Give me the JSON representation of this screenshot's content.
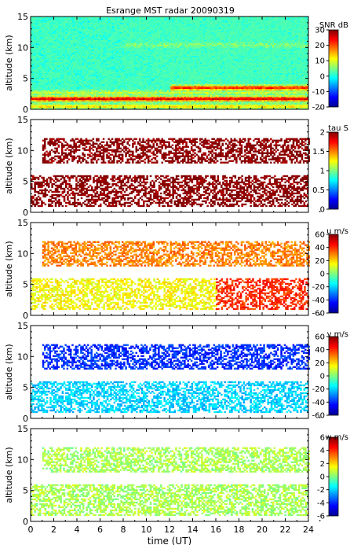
{
  "title": "Esrange MST radar 20090319",
  "chart_data": [
    {
      "type": "heatmap",
      "variable": "SNR",
      "ylabel": "altitude (km)",
      "xlabel": "",
      "xlim": [
        0,
        24
      ],
      "ylim": [
        0,
        15
      ],
      "yticks": [
        "0",
        "5",
        "10",
        "15"
      ],
      "colorbar": {
        "title": "SNR dB",
        "range": [
          -20,
          30
        ],
        "ticks": [
          "30",
          "20",
          "10",
          "0",
          "-10",
          "-20"
        ]
      },
      "layers": [
        {
          "alt_km": 1.8,
          "hour_range": [
            0,
            24
          ],
          "value_dB": 25
        },
        {
          "alt_km": 0.6,
          "hour_range": [
            0,
            24
          ],
          "value_dB": 12
        },
        {
          "alt_km": 2.8,
          "hour_range": [
            0,
            24
          ],
          "value_dB": 8
        },
        {
          "alt_km": 3.6,
          "hour_range": [
            12,
            24
          ],
          "value_dB": 22
        },
        {
          "alt_km": 10.5,
          "hour_range": [
            8,
            24
          ],
          "value_dB": 5
        }
      ],
      "background_dB": -3
    },
    {
      "type": "heatmap",
      "variable": "tau",
      "ylabel": "altitude (km)",
      "xlabel": "",
      "xlim": [
        0,
        24
      ],
      "ylim": [
        0,
        15
      ],
      "yticks": [
        "0",
        "5",
        "10",
        "15"
      ],
      "colorbar": {
        "title": "tau S",
        "range": [
          0,
          2
        ],
        "ticks": [
          "2",
          "1.5",
          "1",
          "0.5",
          "0"
        ]
      },
      "regions": [
        {
          "alt_km": [
            1,
            6
          ],
          "hour_range": [
            0,
            24
          ],
          "value_s": 2
        },
        {
          "alt_km": [
            8,
            12
          ],
          "hour_range": [
            1,
            24
          ],
          "value_s": 2
        }
      ]
    },
    {
      "type": "heatmap",
      "variable": "u",
      "ylabel": "altitude (km)",
      "xlabel": "",
      "xlim": [
        0,
        24
      ],
      "ylim": [
        0,
        15
      ],
      "yticks": [
        "0",
        "5",
        "10",
        "15"
      ],
      "colorbar": {
        "title": "u m/s",
        "range": [
          -60,
          60
        ],
        "ticks": [
          "60",
          "40",
          "20",
          "0",
          "-20",
          "-40",
          "-60"
        ]
      },
      "regions": [
        {
          "alt_km": [
            1,
            6
          ],
          "hour_range": [
            0,
            16
          ],
          "value_ms": 15
        },
        {
          "alt_km": [
            1,
            6
          ],
          "hour_range": [
            16,
            24
          ],
          "value_ms": 40
        },
        {
          "alt_km": [
            8,
            12
          ],
          "hour_range": [
            1,
            24
          ],
          "value_ms": 30
        }
      ]
    },
    {
      "type": "heatmap",
      "variable": "v",
      "ylabel": "altitude (km)",
      "xlabel": "",
      "xlim": [
        0,
        24
      ],
      "ylim": [
        0,
        15
      ],
      "yticks": [
        "0",
        "5",
        "10",
        "15"
      ],
      "colorbar": {
        "title": "v m/s",
        "range": [
          -60,
          60
        ],
        "ticks": [
          "60",
          "40",
          "20",
          "0",
          "-20",
          "-40",
          "-60"
        ]
      },
      "regions": [
        {
          "alt_km": [
            1,
            6
          ],
          "hour_range": [
            0,
            24
          ],
          "value_ms": -20
        },
        {
          "alt_km": [
            8,
            12
          ],
          "hour_range": [
            1,
            24
          ],
          "value_ms": -40
        }
      ]
    },
    {
      "type": "heatmap",
      "variable": "w",
      "ylabel": "altitude (km)",
      "xlabel": "time (UT)",
      "xlim": [
        0,
        24
      ],
      "ylim": [
        0,
        15
      ],
      "xticks": [
        "0",
        "2",
        "4",
        "6",
        "8",
        "10",
        "12",
        "14",
        "16",
        "18",
        "20",
        "22",
        "24"
      ],
      "yticks": [
        "0",
        "5",
        "10",
        "15"
      ],
      "colorbar": {
        "title": "w m/s",
        "range": [
          -6,
          6
        ],
        "ticks": [
          "6",
          "4",
          "2",
          "0",
          "-2",
          "-4",
          "-6"
        ]
      },
      "regions": [
        {
          "alt_km": [
            1,
            6
          ],
          "hour_range": [
            0,
            24
          ],
          "value_ms": 0.5
        },
        {
          "alt_km": [
            8,
            12
          ],
          "hour_range": [
            1,
            24
          ],
          "value_ms": 0.5
        }
      ]
    }
  ]
}
